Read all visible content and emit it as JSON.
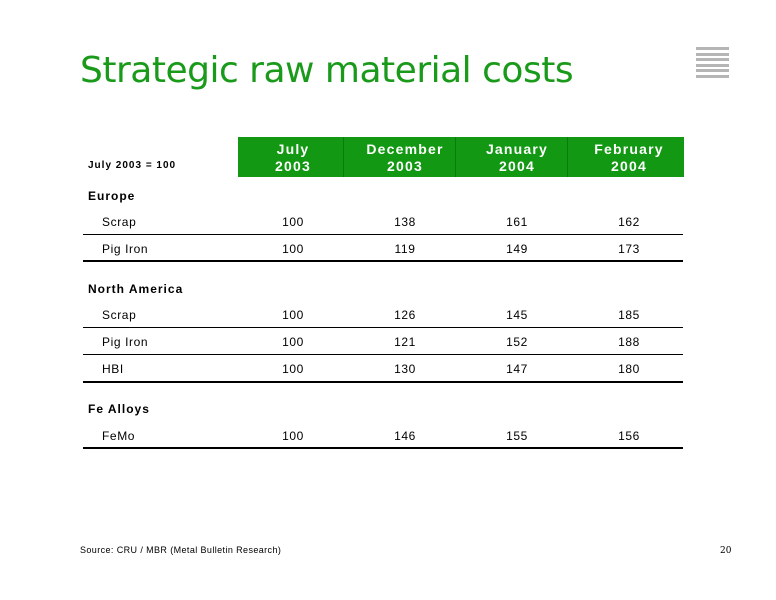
{
  "title": "Strategic raw material costs",
  "base_label": "July 2003 = 100",
  "columns": [
    {
      "line1": "July",
      "line2": "2003"
    },
    {
      "line1": "December",
      "line2": "2003"
    },
    {
      "line1": "January",
      "line2": "2004"
    },
    {
      "line1": "February",
      "line2": "2004"
    }
  ],
  "sections": [
    {
      "name": "Europe",
      "rows": [
        {
          "label": "Scrap",
          "values": [
            "100",
            "138",
            "161",
            "162"
          ]
        },
        {
          "label": "Pig Iron",
          "values": [
            "100",
            "119",
            "149",
            "173"
          ]
        }
      ]
    },
    {
      "name": "North America",
      "rows": [
        {
          "label": "Scrap",
          "values": [
            "100",
            "126",
            "145",
            "185"
          ]
        },
        {
          "label": "Pig Iron",
          "values": [
            "100",
            "121",
            "152",
            "188"
          ]
        },
        {
          "label": "HBI",
          "values": [
            "100",
            "130",
            "147",
            "180"
          ]
        }
      ]
    },
    {
      "name": "Fe Alloys",
      "rows": [
        {
          "label": "FeMo",
          "values": [
            "100",
            "146",
            "155",
            "156"
          ]
        }
      ]
    }
  ],
  "source": "Source: CRU / MBR (Metal Bulletin Research)",
  "page_number": "20",
  "colors": {
    "title": "#1a9a1a",
    "header_bg": "#129812",
    "logo": "#b5b5b5"
  }
}
